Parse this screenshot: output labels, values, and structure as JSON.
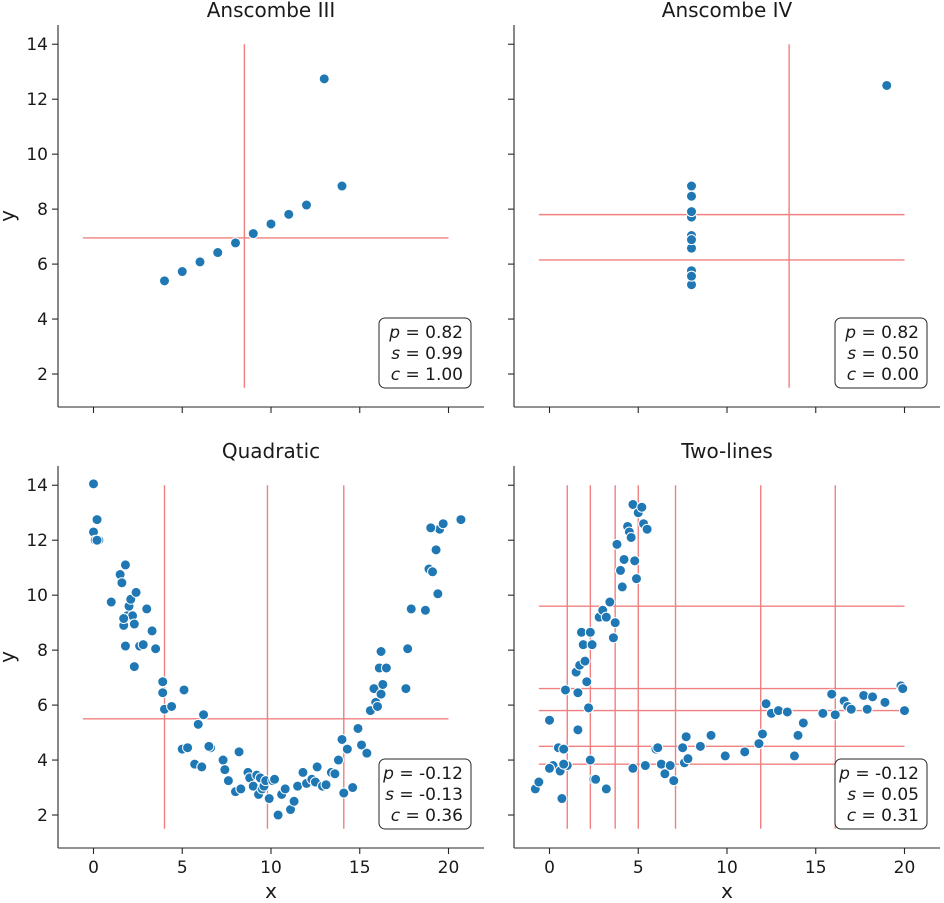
{
  "chart_data": [
    {
      "type": "scatter",
      "title": "Anscombe III",
      "xlabel": "",
      "ylabel": "y",
      "xlim": [
        -2,
        22
      ],
      "ylim": [
        0.8,
        14.7
      ],
      "xticks": [
        0,
        5,
        10,
        15,
        20
      ],
      "yticks": [
        2,
        4,
        6,
        8,
        10,
        12,
        14
      ],
      "show_xticklabels": false,
      "show_yticklabels": true,
      "x": [
        10,
        8,
        13,
        9,
        11,
        14,
        6,
        4,
        12,
        7,
        5
      ],
      "y": [
        7.46,
        6.77,
        12.74,
        7.11,
        7.81,
        8.84,
        6.08,
        5.39,
        8.15,
        6.42,
        5.73
      ],
      "vlines": [
        8.5
      ],
      "hlines": [
        6.95
      ],
      "stats": {
        "p": "0.82",
        "s": "0.99",
        "c": "1.00"
      }
    },
    {
      "type": "scatter",
      "title": "Anscombe IV",
      "xlabel": "",
      "ylabel": "",
      "xlim": [
        -2,
        22
      ],
      "ylim": [
        0.8,
        14.7
      ],
      "xticks": [
        0,
        5,
        10,
        15,
        20
      ],
      "yticks": [
        2,
        4,
        6,
        8,
        10,
        12,
        14
      ],
      "show_xticklabels": false,
      "show_yticklabels": false,
      "x": [
        8,
        8,
        8,
        8,
        8,
        8,
        8,
        19,
        8,
        8,
        8
      ],
      "y": [
        6.58,
        5.76,
        7.71,
        8.84,
        8.47,
        7.04,
        5.25,
        12.5,
        5.56,
        7.91,
        6.89
      ],
      "vlines": [
        13.5
      ],
      "hlines": [
        7.8,
        6.15
      ],
      "stats": {
        "p": "0.82",
        "s": "0.50",
        "c": "0.00"
      }
    },
    {
      "type": "scatter",
      "title": "Quadratic",
      "xlabel": "x",
      "ylabel": "y",
      "xlim": [
        -2,
        22
      ],
      "ylim": [
        0.8,
        14.7
      ],
      "xticks": [
        0,
        5,
        10,
        15,
        20
      ],
      "yticks": [
        2,
        4,
        6,
        8,
        10,
        12,
        14
      ],
      "show_xticklabels": true,
      "show_yticklabels": true,
      "x": [
        0,
        0,
        0.1,
        0.2,
        0.3,
        0.2,
        1,
        1.5,
        1.6,
        1.7,
        1.8,
        1.9,
        2.0,
        2.1,
        2.2,
        2.3,
        2.4,
        2.6,
        1.7,
        1.8,
        2.8,
        3.0,
        3.3,
        3.5,
        2.3,
        3.9,
        3.9,
        4.0,
        4.4,
        5.0,
        5.1,
        5.3,
        5.7,
        5.9,
        6.1,
        6.2,
        6.6,
        6.5,
        7.3,
        7.4,
        7.6,
        8.0,
        8.2,
        8.3,
        8.7,
        8.8,
        9.0,
        9.2,
        9.3,
        9.4,
        9.5,
        9.6,
        9.7,
        9.9,
        10.1,
        10.2,
        10.4,
        10.6,
        10.8,
        11.1,
        11.3,
        11.5,
        11.8,
        12.0,
        12.3,
        12.5,
        12.6,
        12.9,
        13.1,
        13.4,
        13.6,
        13.8,
        14.0,
        14.1,
        14.3,
        14.6,
        14.9,
        15.1,
        15.4,
        15.6,
        15.8,
        15.9,
        16.0,
        16.1,
        16.2,
        16.3,
        16.5,
        16.2,
        17.6,
        17.7,
        17.9,
        18.7,
        18.9,
        19.1,
        19.3,
        19.4,
        19.5,
        19.7,
        20.7,
        19.0
      ],
      "y": [
        12.3,
        14.05,
        12.0,
        12.75,
        12.0,
        12.0,
        9.75,
        10.75,
        10.45,
        8.9,
        8.15,
        9.25,
        9.6,
        9.85,
        9.25,
        8.95,
        10.1,
        8.15,
        9.15,
        11.1,
        8.2,
        9.5,
        8.7,
        8.05,
        7.4,
        6.85,
        6.45,
        5.85,
        5.95,
        4.4,
        6.55,
        4.45,
        3.85,
        5.3,
        3.75,
        5.65,
        4.45,
        4.5,
        4.0,
        3.65,
        3.25,
        2.85,
        4.3,
        2.95,
        3.55,
        3.35,
        3.05,
        3.45,
        2.75,
        3.35,
        2.95,
        3.05,
        3.25,
        2.6,
        3.25,
        3.3,
        2.0,
        2.75,
        2.95,
        2.2,
        2.5,
        3.05,
        3.55,
        3.15,
        3.3,
        3.2,
        3.75,
        3.05,
        3.1,
        3.55,
        3.5,
        4.0,
        4.75,
        2.8,
        4.4,
        3.0,
        5.15,
        4.55,
        4.25,
        5.8,
        6.6,
        6.1,
        5.95,
        7.35,
        6.4,
        6.75,
        7.35,
        7.95,
        6.6,
        8.05,
        9.5,
        9.45,
        10.95,
        10.85,
        11.65,
        10.05,
        12.4,
        12.6,
        12.75,
        12.45
      ],
      "vlines": [
        4.0,
        9.8,
        14.1
      ],
      "hlines": [
        5.5
      ],
      "stats": {
        "p": "-0.12",
        "s": "-0.13",
        "c": "0.36"
      }
    },
    {
      "type": "scatter",
      "title": "Two-lines",
      "xlabel": "x",
      "ylabel": "",
      "xlim": [
        -2,
        22
      ],
      "ylim": [
        0.8,
        14.7
      ],
      "xticks": [
        0,
        5,
        10,
        15,
        20
      ],
      "yticks": [
        2,
        4,
        6,
        8,
        10,
        12,
        14
      ],
      "show_xticklabels": true,
      "show_yticklabels": false,
      "x": [
        -0.8,
        -0.6,
        0,
        0.2,
        0.5,
        0.6,
        0.7,
        0.8,
        0.9,
        1.0,
        1.5,
        1.6,
        1.7,
        1.8,
        1.9,
        2.0,
        2.1,
        2.2,
        2.3,
        2.4,
        2.5,
        2.6,
        2.8,
        3.0,
        3.2,
        3.4,
        3.6,
        3.7,
        3.8,
        4.0,
        4.1,
        4.2,
        4.4,
        4.5,
        4.6,
        4.7,
        4.8,
        4.9,
        5.0,
        5.2,
        5.3,
        5.5,
        0.0,
        0.8,
        1.6,
        2.3,
        3.2,
        4.7,
        5.4,
        6.0,
        6.1,
        6.3,
        6.5,
        6.8,
        7.0,
        7.5,
        7.6,
        7.7,
        7.8,
        8.5,
        9.1,
        9.9,
        11.0,
        11.8,
        12.0,
        12.2,
        12.5,
        12.9,
        13.4,
        13.8,
        14.0,
        14.3,
        15.4,
        15.9,
        16.1,
        16.6,
        16.8,
        17.0,
        17.7,
        17.9,
        18.2,
        18.9,
        19.8,
        19.9,
        20.0
      ],
      "y": [
        2.95,
        3.2,
        5.45,
        3.8,
        4.45,
        3.6,
        2.6,
        4.4,
        6.55,
        3.8,
        7.2,
        6.45,
        7.45,
        8.65,
        8.2,
        7.6,
        6.85,
        5.9,
        8.65,
        8.2,
        3.3,
        3.3,
        9.2,
        9.45,
        9.2,
        9.75,
        8.45,
        9.0,
        11.85,
        10.9,
        10.3,
        11.3,
        12.5,
        12.3,
        12.1,
        13.3,
        11.25,
        10.6,
        13.0,
        13.2,
        12.6,
        12.4,
        3.7,
        3.85,
        5.1,
        4.0,
        2.95,
        3.7,
        3.8,
        4.4,
        4.45,
        3.85,
        3.5,
        3.8,
        3.25,
        4.45,
        3.9,
        4.85,
        4.05,
        4.5,
        4.9,
        4.15,
        4.3,
        4.6,
        4.95,
        6.05,
        5.7,
        5.8,
        5.75,
        4.15,
        4.9,
        5.35,
        5.7,
        6.4,
        5.65,
        6.15,
        5.95,
        5.85,
        6.35,
        5.85,
        6.3,
        6.1,
        6.7,
        6.6,
        5.8
      ],
      "vlines": [
        1.0,
        2.3,
        3.7,
        5.0,
        7.1,
        11.9,
        16.1
      ],
      "hlines": [
        9.6,
        6.6,
        5.8,
        4.5,
        3.85
      ],
      "stats": {
        "p": "-0.12",
        "s": "0.05",
        "c": "0.31"
      }
    }
  ]
}
